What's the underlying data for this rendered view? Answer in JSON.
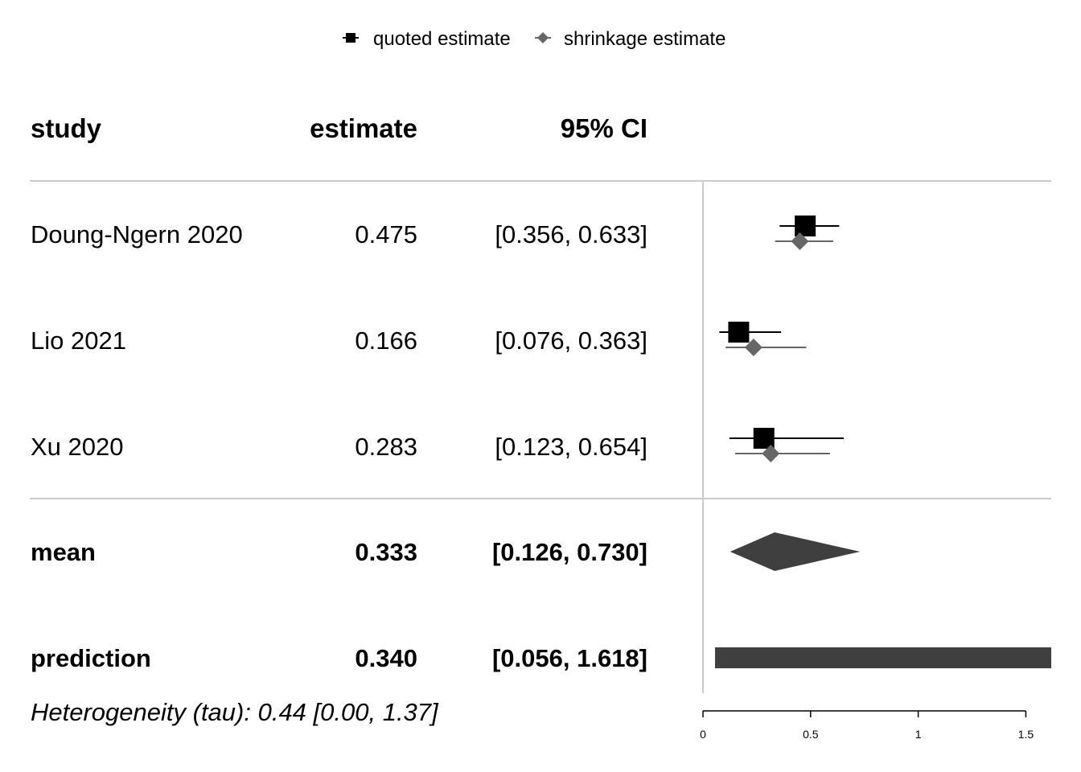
{
  "legend": {
    "quoted": "quoted estimate",
    "shrinkage": "shrinkage estimate"
  },
  "headers": {
    "study": "study",
    "estimate": "estimate",
    "ci": "95% CI"
  },
  "heterogeneity": "Heterogeneity (tau): 0.44 [0.00, 1.37]",
  "colors": {
    "quoted": "#000000",
    "shrinkage": "#666666",
    "summary": "#3f3f3f",
    "rule": "#cccccc"
  },
  "chart_data": {
    "type": "forest",
    "xlim": [
      0,
      1.618
    ],
    "x_ticks": [
      0,
      0.5,
      1,
      1.5
    ],
    "x_tick_labels": [
      "0",
      "0.5",
      "1",
      "1.5"
    ],
    "studies": [
      {
        "name": "Doung-Ngern 2020",
        "estimate_text": "0.475",
        "ci_text": "[0.356, 0.633]",
        "quoted": {
          "est": 0.475,
          "lo": 0.356,
          "hi": 0.633
        },
        "shrinkage": {
          "est": 0.45,
          "lo": 0.335,
          "hi": 0.605
        }
      },
      {
        "name": "Lio 2021",
        "estimate_text": "0.166",
        "ci_text": "[0.076, 0.363]",
        "quoted": {
          "est": 0.166,
          "lo": 0.076,
          "hi": 0.363
        },
        "shrinkage": {
          "est": 0.235,
          "lo": 0.105,
          "hi": 0.48
        }
      },
      {
        "name": "Xu 2020",
        "estimate_text": "0.283",
        "ci_text": "[0.123, 0.654]",
        "quoted": {
          "est": 0.283,
          "lo": 0.123,
          "hi": 0.654
        },
        "shrinkage": {
          "est": 0.315,
          "lo": 0.15,
          "hi": 0.59
        }
      }
    ],
    "mean": {
      "name": "mean",
      "estimate_text": "0.333",
      "ci_text": "[0.126, 0.730]",
      "est": 0.333,
      "lo": 0.126,
      "hi": 0.73
    },
    "prediction": {
      "name": "prediction",
      "estimate_text": "0.340",
      "ci_text": "[0.056, 1.618]",
      "est": 0.34,
      "lo": 0.056,
      "hi": 1.618
    }
  }
}
